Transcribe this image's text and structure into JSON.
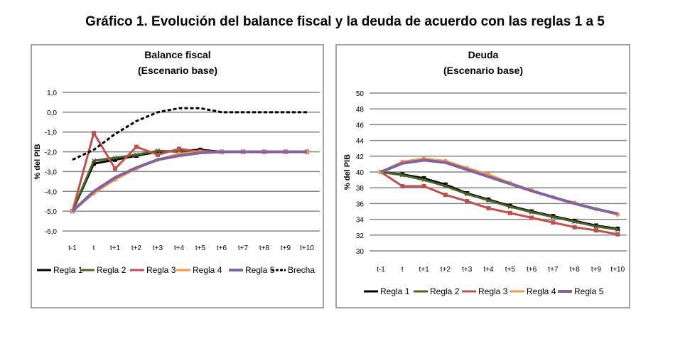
{
  "title": "Gráfico 1. Evolución del balance fiscal y la deuda de acuerdo con las reglas 1 a 5",
  "colors": {
    "Regla 1": "#000000",
    "Regla 2": "#4f6228",
    "Regla 3": "#c0504d",
    "Regla 4": "#f79646",
    "Regla 5": "#8064a2",
    "Brecha": "#000000"
  },
  "chart_data": [
    {
      "type": "line",
      "title": "Balance fiscal",
      "subtitle": "(Escenario base)",
      "xlabel": "",
      "ylabel": "% del PIB",
      "ylim": [
        -6,
        1
      ],
      "yticks": [
        "1,0",
        "0,0",
        "-1,0",
        "-2,0",
        "-3,0",
        "-4,0",
        "-5,0",
        "-6,0"
      ],
      "categories": [
        "t-1",
        "t",
        "t+1",
        "t+2",
        "t+3",
        "t+4",
        "t+5",
        "t+6",
        "t+7",
        "t+8",
        "t+9",
        "t+10"
      ],
      "grid": true,
      "legend": "bottom",
      "series": [
        {
          "name": "Regla 1",
          "values": [
            -5,
            -2.6,
            -2.4,
            -2.2,
            -2.0,
            -1.95,
            -1.9,
            -2,
            -2,
            -2,
            -2,
            -2
          ]
        },
        {
          "name": "Regla 2",
          "values": [
            -5,
            -2.45,
            -2.3,
            -2.15,
            -1.95,
            -2.0,
            -1.95,
            -2,
            -2,
            -2,
            -2,
            -2
          ]
        },
        {
          "name": "Regla 3",
          "values": [
            -5,
            -1.05,
            -2.85,
            -1.75,
            -2.15,
            -1.85,
            -2.0,
            -2,
            -2,
            -2,
            -2,
            -2
          ]
        },
        {
          "name": "Regla 4",
          "values": [
            -5,
            -4.1,
            -3.4,
            -2.85,
            -2.4,
            -2.1,
            -2.0,
            -2,
            -2,
            -2,
            -2,
            -2
          ]
        },
        {
          "name": "Regla 5",
          "values": [
            -5,
            -4.0,
            -3.3,
            -2.8,
            -2.4,
            -2.2,
            -2.05,
            -2.0,
            -2,
            -2,
            -2,
            -2
          ]
        },
        {
          "name": "Brecha",
          "values": [
            -2.4,
            -1.9,
            -1.1,
            -0.45,
            0,
            0.2,
            0.2,
            0,
            0,
            0,
            0,
            0
          ]
        }
      ]
    },
    {
      "type": "line",
      "title": "Deuda",
      "subtitle": "(Escenario base)",
      "xlabel": "",
      "ylabel": "% del PIB",
      "ylim": [
        30,
        50
      ],
      "yticks": [
        "50",
        "48",
        "46",
        "44",
        "42",
        "40",
        "38",
        "36",
        "34",
        "32",
        "30"
      ],
      "categories": [
        "t-1",
        "t",
        "t+1",
        "t+2",
        "t+3",
        "t+4",
        "t+5",
        "t+6",
        "t+7",
        "t+8",
        "t+9",
        "t+10"
      ],
      "grid": true,
      "legend": "bottom",
      "series": [
        {
          "name": "Regla 1",
          "values": [
            40,
            39.7,
            39.2,
            38.4,
            37.3,
            36.5,
            35.7,
            35.0,
            34.4,
            33.8,
            33.2,
            32.8
          ]
        },
        {
          "name": "Regla 2",
          "values": [
            40,
            39.6,
            39.0,
            38.2,
            37.2,
            36.4,
            35.6,
            34.9,
            34.3,
            33.7,
            33.1,
            32.7
          ]
        },
        {
          "name": "Regla 3",
          "values": [
            40,
            38.2,
            38.2,
            37.1,
            36.3,
            35.4,
            34.8,
            34.2,
            33.6,
            33.0,
            32.6,
            32.1
          ]
        },
        {
          "name": "Regla 4",
          "values": [
            40,
            41.3,
            41.7,
            41.4,
            40.5,
            39.7,
            38.6,
            37.7,
            36.8,
            36.1,
            35.3,
            34.6
          ]
        },
        {
          "name": "Regla 5",
          "values": [
            40,
            41.1,
            41.5,
            41.2,
            40.3,
            39.4,
            38.5,
            37.6,
            36.8,
            36.0,
            35.3,
            34.7
          ]
        }
      ]
    }
  ]
}
